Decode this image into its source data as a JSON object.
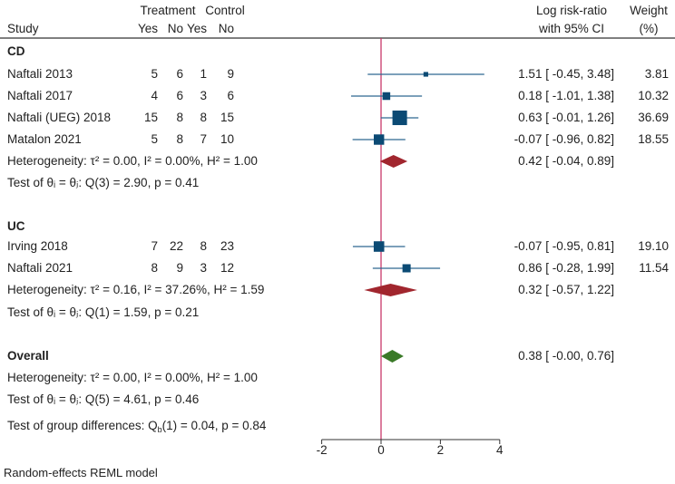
{
  "header": {
    "study": "Study",
    "treatment": "Treatment",
    "control": "Control",
    "yes": "Yes",
    "no": "No",
    "es_line1": "Log risk-ratio",
    "es_line2": "with 95% CI",
    "weight_line1": "Weight",
    "weight_line2": "(%)"
  },
  "colors": {
    "marker": "#0b4a74",
    "ci_line": "#2e6890",
    "subgroup_diamond": "#a1262e",
    "overall_diamond": "#3a7a28",
    "null_line": "#c8386a"
  },
  "groups": [
    {
      "label": "CD",
      "studies": [
        {
          "study": "Naftali 2013",
          "t_yes": "5",
          "t_no": "6",
          "c_yes": "1",
          "c_no": "9",
          "es": 1.51,
          "lo": -0.45,
          "hi": 3.48,
          "es_text": "1.51 [ -0.45,  3.48]",
          "weight": "3.81"
        },
        {
          "study": "Naftali 2017",
          "t_yes": "4",
          "t_no": "6",
          "c_yes": "3",
          "c_no": "6",
          "es": 0.18,
          "lo": -1.01,
          "hi": 1.38,
          "es_text": "0.18 [ -1.01,  1.38]",
          "weight": "10.32"
        },
        {
          "study": "Naftali (UEG) 2018",
          "t_yes": "15",
          "t_no": "8",
          "c_yes": "8",
          "c_no": "15",
          "es": 0.63,
          "lo": -0.01,
          "hi": 1.26,
          "es_text": "0.63 [ -0.01,  1.26]",
          "weight": "36.69"
        },
        {
          "study": "Matalon 2021",
          "t_yes": "5",
          "t_no": "8",
          "c_yes": "7",
          "c_no": "10",
          "es": -0.07,
          "lo": -0.96,
          "hi": 0.82,
          "es_text": "-0.07 [ -0.96,  0.82]",
          "weight": "18.55"
        }
      ],
      "pooled": {
        "es": 0.42,
        "lo": -0.04,
        "hi": 0.89,
        "es_text": "0.42 [ -0.04,  0.89]"
      },
      "heterogeneity": "Heterogeneity: τ² = 0.00, I² = 0.00%, H² = 1.00",
      "test": "Test of θᵢ = θⱼ: Q(3) = 2.90, p = 0.41"
    },
    {
      "label": "UC",
      "studies": [
        {
          "study": "Irving 2018",
          "t_yes": "7",
          "t_no": "22",
          "c_yes": "8",
          "c_no": "23",
          "es": -0.07,
          "lo": -0.95,
          "hi": 0.81,
          "es_text": "-0.07 [ -0.95,  0.81]",
          "weight": "19.10"
        },
        {
          "study": "Naftali 2021",
          "t_yes": "8",
          "t_no": "9",
          "c_yes": "3",
          "c_no": "12",
          "es": 0.86,
          "lo": -0.28,
          "hi": 1.99,
          "es_text": "0.86 [ -0.28,  1.99]",
          "weight": "11.54"
        }
      ],
      "pooled": {
        "es": 0.32,
        "lo": -0.57,
        "hi": 1.22,
        "es_text": "0.32 [ -0.57,  1.22]"
      },
      "heterogeneity": "Heterogeneity: τ² = 0.16, I² = 37.26%, H² = 1.59",
      "test": "Test of θᵢ = θⱼ: Q(1) = 1.59, p = 0.21"
    }
  ],
  "overall": {
    "label": "Overall",
    "es": 0.38,
    "lo": -0.0,
    "hi": 0.76,
    "es_text": "0.38 [ -0.00,  0.76]",
    "heterogeneity": "Heterogeneity: τ² = 0.00, I² = 0.00%, H² = 1.00",
    "test": "Test of θᵢ = θⱼ: Q(5) = 4.61, p = 0.46"
  },
  "group_diff": {
    "prefix": "Test of group differences: Q",
    "sub": "b",
    "suffix": "(1) = 0.04, p = 0.84"
  },
  "footnote": "Random-effects REML model",
  "chart_data": {
    "type": "forest",
    "xlabel": "",
    "xlim": [
      -2,
      4
    ],
    "xticks": [
      "-2",
      "0",
      "2",
      "4"
    ],
    "null_line": 0
  }
}
